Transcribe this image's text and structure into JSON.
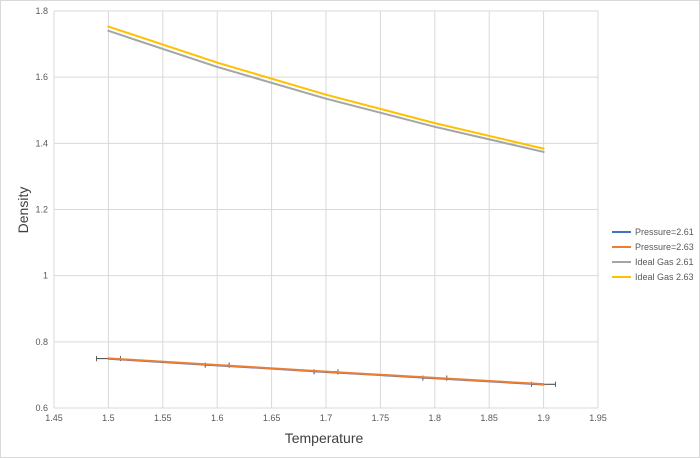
{
  "chart_data": {
    "type": "line",
    "title": "",
    "xlabel": "Temperature",
    "ylabel": "Density",
    "xlim": [
      1.45,
      1.95
    ],
    "ylim": [
      0.6,
      1.8
    ],
    "xticks": [
      1.45,
      1.5,
      1.55,
      1.6,
      1.65,
      1.7,
      1.75,
      1.8,
      1.85,
      1.9,
      1.95
    ],
    "xtick_labels": [
      "1.45",
      "1.5",
      "1.55",
      "1.6",
      "1.65",
      "1.7",
      "1.75",
      "1.8",
      "1.85",
      "1.9",
      "1.95"
    ],
    "yticks": [
      0.6,
      0.8,
      1.0,
      1.2,
      1.4,
      1.6,
      1.8
    ],
    "ytick_labels": [
      "0.6",
      "0.8",
      "1",
      "1.2",
      "1.4",
      "1.6",
      "1.8"
    ],
    "grid": "horizontal and vertical",
    "legend_position": "right",
    "series": [
      {
        "name": "Pressure=2.61",
        "color": "#4472C4",
        "x": [
          1.5,
          1.6,
          1.7,
          1.8,
          1.9
        ],
        "y": [
          0.749,
          0.729,
          0.709,
          0.69,
          0.671
        ],
        "x_error": 0.011
      },
      {
        "name": "Pressure=2.63",
        "color": "#ED7D31",
        "x": [
          1.5,
          1.6,
          1.7,
          1.8,
          1.9
        ],
        "y": [
          0.75,
          0.73,
          0.71,
          0.691,
          0.672
        ],
        "x_error": 0.011
      },
      {
        "name": "Ideal Gas 2.61",
        "color": "#A5A5A5",
        "x": [
          1.5,
          1.6,
          1.7,
          1.8,
          1.9
        ],
        "y": [
          1.74,
          1.631,
          1.535,
          1.45,
          1.374
        ]
      },
      {
        "name": "Ideal Gas 2.63",
        "color": "#FFC000",
        "x": [
          1.5,
          1.6,
          1.7,
          1.8,
          1.9
        ],
        "y": [
          1.753,
          1.644,
          1.547,
          1.461,
          1.384
        ]
      }
    ]
  }
}
